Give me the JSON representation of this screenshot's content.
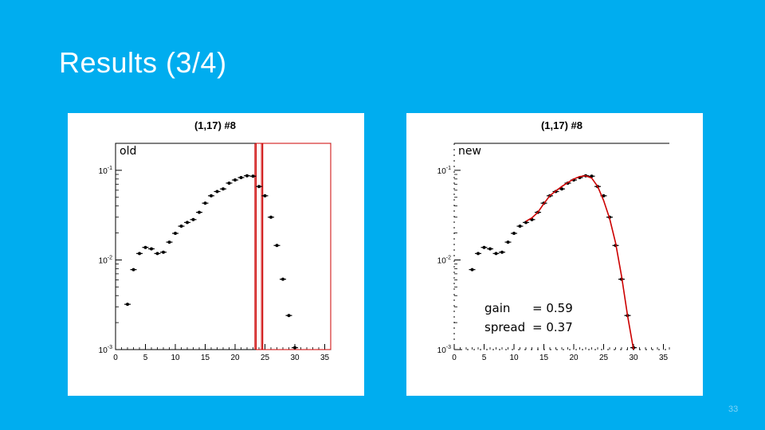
{
  "slide": {
    "title": "Results (3/4)",
    "page_number": "33"
  },
  "chart_data": [
    {
      "type": "scatter",
      "title": "(1,17) #8",
      "annotation": "old",
      "xlabel": "",
      "ylabel": "",
      "xlim": [
        0,
        36
      ],
      "ylim": [
        0.001,
        0.2
      ],
      "log_y": true,
      "x_ticks": [
        0,
        5,
        10,
        15,
        20,
        25,
        30,
        35
      ],
      "y_ticks": [
        {
          "value": 0.001,
          "label": "10^-3"
        },
        {
          "value": 0.01,
          "label": "10^-2"
        },
        {
          "value": 0.1,
          "label": "10^-1"
        }
      ],
      "series": [
        {
          "x": [
            2,
            3,
            4,
            5,
            6,
            7,
            8,
            9,
            10,
            11,
            12,
            13,
            14,
            15,
            16,
            17,
            18,
            19,
            20,
            21,
            22,
            23,
            24,
            25,
            26,
            27,
            28,
            29,
            30
          ],
          "y": [
            0.0032,
            0.0078,
            0.0118,
            0.0138,
            0.0133,
            0.0118,
            0.0122,
            0.0158,
            0.0198,
            0.0238,
            0.0262,
            0.0282,
            0.034,
            0.043,
            0.052,
            0.058,
            0.062,
            0.072,
            0.078,
            0.083,
            0.087,
            0.086,
            0.066,
            0.052,
            0.03,
            0.0145,
            0.0061,
            0.0024,
            0.00105
          ],
          "color": "#000000"
        }
      ],
      "vertical_lines_x": [
        23.5,
        24.6
      ],
      "line_color": "#cc0000"
    },
    {
      "type": "scatter",
      "title": "(1,17) #8",
      "annotation": "new",
      "stats": [
        {
          "label": "gain",
          "value": "= 0.59"
        },
        {
          "label": "spread",
          "value": "= 0.37"
        }
      ],
      "xlabel": "",
      "ylabel": "",
      "xlim": [
        0,
        36
      ],
      "ylim": [
        0.001,
        0.2
      ],
      "log_y": true,
      "x_ticks": [
        0,
        5,
        10,
        15,
        20,
        25,
        30,
        35
      ],
      "y_ticks": [
        {
          "value": 0.001,
          "label": "10^-3"
        },
        {
          "value": 0.01,
          "label": "10^-2"
        },
        {
          "value": 0.1,
          "label": "10^-1"
        }
      ],
      "series": [
        {
          "x": [
            3,
            4,
            5,
            6,
            7,
            8,
            9,
            10,
            11,
            12,
            13,
            14,
            15,
            16,
            17,
            18,
            19,
            20,
            21,
            22,
            23,
            24,
            25,
            26,
            27,
            28,
            29,
            30
          ],
          "y": [
            0.0078,
            0.0118,
            0.0138,
            0.0133,
            0.0118,
            0.0122,
            0.0158,
            0.0198,
            0.0238,
            0.0262,
            0.0282,
            0.034,
            0.043,
            0.052,
            0.058,
            0.062,
            0.072,
            0.078,
            0.083,
            0.087,
            0.086,
            0.066,
            0.052,
            0.03,
            0.0145,
            0.0061,
            0.0024,
            0.00105
          ],
          "color": "#000000"
        }
      ],
      "fit": {
        "x": [
          12,
          13,
          14,
          15,
          16,
          17,
          18,
          19,
          20,
          21,
          22,
          23,
          24,
          25,
          26,
          27,
          28,
          29,
          30
        ],
        "y": [
          0.027,
          0.0295,
          0.034,
          0.0425,
          0.052,
          0.059,
          0.066,
          0.073,
          0.08,
          0.085,
          0.087,
          0.082,
          0.066,
          0.046,
          0.029,
          0.0155,
          0.0066,
          0.0024,
          0.00085
        ],
        "color": "#cc0000"
      }
    }
  ]
}
